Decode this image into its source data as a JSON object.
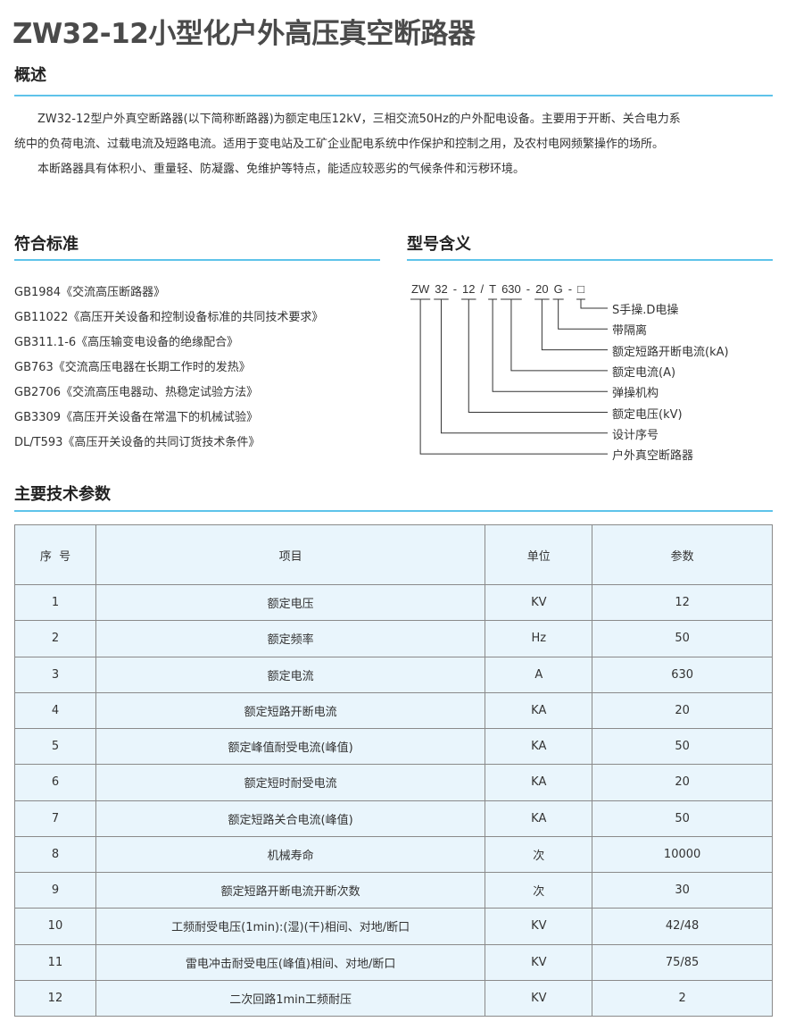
{
  "title": "ZW32-12小型化户外高压真空断路器",
  "overview": {
    "heading": "概述",
    "paragraphs": [
      "ZW32-12型户外真空断路器(以下简称断路器)为额定电压12kV，三相交流50Hz的户外配电设备。主要用于开断、关合电力系",
      "统中的负荷电流、过载电流及短路电流。适用于变电站及工矿企业配电系统中作保护和控制之用，及农村电网频繁操作的场所。",
      "本断路器具有体积小、重量轻、防凝露、免维护等特点，能适应较恶劣的气候条件和污秽环境。"
    ]
  },
  "standards": {
    "heading": "符合标准",
    "items": [
      "GB1984《交流高压断路器》",
      "GB11022《高压开关设备和控制设备标准的共同技术要求》",
      "GB311.1-6《高压输变电设备的绝缘配合》",
      "GB763《交流高压电器在长期工作时的发热》",
      "GB2706《交流高压电器动、热稳定试验方法》",
      "GB3309《高压开关设备在常温下的机械试验》",
      "DL/T593《高压开关设备的共同订货技术条件》"
    ]
  },
  "model": {
    "heading": "型号含义",
    "codes": [
      "ZW",
      "32",
      "-",
      "12",
      "/",
      "T",
      "630",
      "-",
      "20",
      "G",
      "-",
      "□"
    ],
    "labels": [
      "S手操.D电操",
      "带隔离",
      "额定短路开断电流(kA)",
      "额定电流(A)",
      "弹操机构",
      "额定电压(kV)",
      "设计序号",
      "户外真空断路器"
    ]
  },
  "params": {
    "heading": "主要技术参数",
    "columns": [
      "序  号",
      "项目",
      "单位",
      "参数"
    ],
    "rows": [
      [
        "1",
        "额定电压",
        "KV",
        "12"
      ],
      [
        "2",
        "额定频率",
        "Hz",
        "50"
      ],
      [
        "3",
        "额定电流",
        "A",
        "630"
      ],
      [
        "4",
        "额定短路开断电流",
        "KA",
        "20"
      ],
      [
        "5",
        "额定峰值耐受电流(峰值)",
        "KA",
        "50"
      ],
      [
        "6",
        "额定短时耐受电流",
        "KA",
        "20"
      ],
      [
        "7",
        "额定短路关合电流(峰值)",
        "KA",
        "50"
      ],
      [
        "8",
        "机械寿命",
        "次",
        "10000"
      ],
      [
        "9",
        "额定短路开断电流开断次数",
        "次",
        "30"
      ],
      [
        "10",
        "工频耐受电压(1min):(湿)(干)相间、对地/断口",
        "KV",
        "42/48"
      ],
      [
        "11",
        "雷电冲击耐受电压(峰值)相间、对地/断口",
        "KV",
        "75/85"
      ],
      [
        "12",
        "二次回路1min工频耐压",
        "KV",
        "2"
      ]
    ]
  },
  "colors": {
    "rule": "#5ec3ea",
    "cell": "#e9f5fc"
  }
}
